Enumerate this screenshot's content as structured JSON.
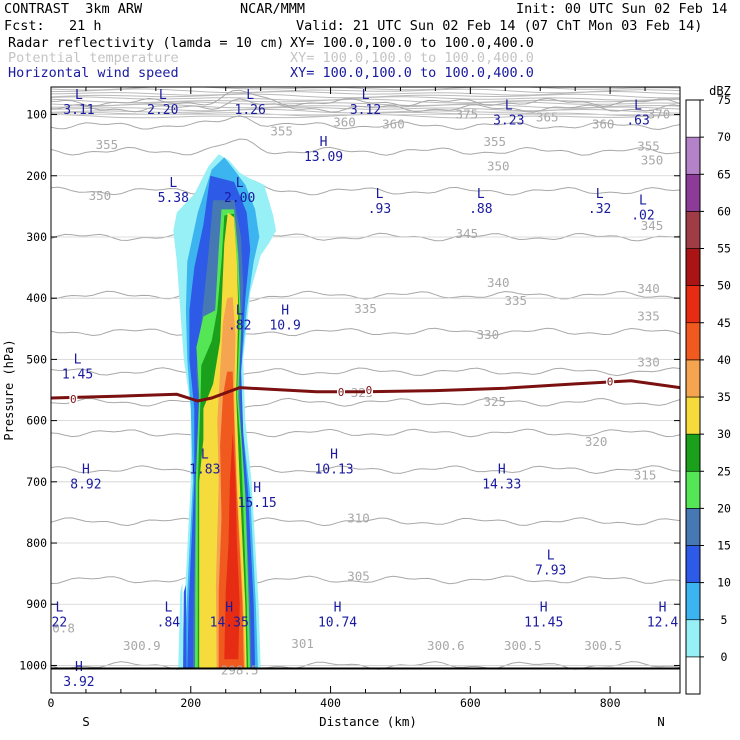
{
  "header": {
    "model": "CONTRAST  3km ARW",
    "org": "NCAR/MMM",
    "init": "Init: 00 UTC Sun 02 Feb 14",
    "fcst": "Fcst:   21 h",
    "valid": "Valid: 21 UTC Sun 02 Feb 14 (07 ChT Mon 03 Feb 14)",
    "fields": [
      {
        "label": "Radar reflectivity (lamda = 10 cm)",
        "xy": "XY= 100.0,100.0 to 100.0,400.0",
        "color": "#000000"
      },
      {
        "label": "Potential temperature",
        "xy": "XY= 100.0,100.0 to 100.0,400.0",
        "color": "#c4c4c4"
      },
      {
        "label": "Horizontal wind speed",
        "xy": "XY= 100.0,100.0 to 100.0,400.0",
        "color": "#1a1aa0"
      }
    ]
  },
  "chart_data": {
    "type": "cross-section",
    "xlabel": "Distance (km)",
    "ylabel": "Pressure (hPa)",
    "xlim": [
      0,
      900
    ],
    "ylim": [
      1045,
      55
    ],
    "x_ticks": [
      0,
      200,
      400,
      600,
      800
    ],
    "y_ticks": [
      100,
      200,
      300,
      400,
      500,
      600,
      700,
      800,
      900,
      1000
    ],
    "x_end_labels": {
      "left": "S",
      "right": "N"
    },
    "colorbar": {
      "unit": "dBZ",
      "levels": [
        0,
        5,
        10,
        15,
        20,
        25,
        30,
        35,
        40,
        45,
        50,
        55,
        60,
        65,
        70,
        75
      ],
      "colors": [
        "#ffffff",
        "#96f0f5",
        "#3cb4f0",
        "#2d5ae6",
        "#4678b4",
        "#55e655",
        "#1aa01a",
        "#f5dc3c",
        "#f5a550",
        "#f05a1e",
        "#e62d14",
        "#aa1414",
        "#a03c46",
        "#8c3c96",
        "#b482c8",
        "#ffffff"
      ]
    },
    "theta_contours": [
      {
        "value": 300,
        "p": 1000
      },
      {
        "value": 305,
        "p": 860
      },
      {
        "value": 310,
        "p": 765
      },
      {
        "value": 315,
        "p": 680
      },
      {
        "value": 320,
        "p": 620
      },
      {
        "value": 325,
        "p": 570
      },
      {
        "value": 330,
        "p": 520
      },
      {
        "value": 335,
        "p": 455
      },
      {
        "value": 340,
        "p": 395
      },
      {
        "value": 345,
        "p": 300
      },
      {
        "value": 350,
        "p": 225
      },
      {
        "value": 355,
        "p": 160
      },
      {
        "value": 360,
        "p": 118
      },
      {
        "value": 370,
        "p": 90
      },
      {
        "value": 375,
        "p": 80
      }
    ],
    "theta_labels": [
      {
        "text": "355",
        "x": 330,
        "p": 128
      },
      {
        "text": "360",
        "x": 420,
        "p": 113
      },
      {
        "text": "360",
        "x": 490,
        "p": 116
      },
      {
        "text": "375",
        "x": 595,
        "p": 100
      },
      {
        "text": "365",
        "x": 710,
        "p": 105
      },
      {
        "text": "360",
        "x": 790,
        "p": 116
      },
      {
        "text": "370",
        "x": 870,
        "p": 100
      },
      {
        "text": "355",
        "x": 80,
        "p": 150
      },
      {
        "text": "355",
        "x": 635,
        "p": 145
      },
      {
        "text": "355",
        "x": 855,
        "p": 152
      },
      {
        "text": "350",
        "x": 70,
        "p": 233
      },
      {
        "text": "350",
        "x": 640,
        "p": 185
      },
      {
        "text": "350",
        "x": 860,
        "p": 175
      },
      {
        "text": "345",
        "x": 595,
        "p": 295
      },
      {
        "text": "345",
        "x": 860,
        "p": 282
      },
      {
        "text": "340",
        "x": 640,
        "p": 375
      },
      {
        "text": "340",
        "x": 855,
        "p": 385
      },
      {
        "text": "335",
        "x": 450,
        "p": 418
      },
      {
        "text": "335",
        "x": 665,
        "p": 405
      },
      {
        "text": "335",
        "x": 855,
        "p": 430
      },
      {
        "text": "330",
        "x": 625,
        "p": 460
      },
      {
        "text": "330",
        "x": 855,
        "p": 505
      },
      {
        "text": "325",
        "x": 445,
        "p": 555
      },
      {
        "text": "325",
        "x": 635,
        "p": 570
      },
      {
        "text": "320",
        "x": 780,
        "p": 635
      },
      {
        "text": "315",
        "x": 850,
        "p": 690
      },
      {
        "text": "310",
        "x": 440,
        "p": 760
      },
      {
        "text": "305",
        "x": 440,
        "p": 855
      },
      {
        "text": "300.9",
        "x": 130,
        "p": 968
      },
      {
        "text": "301",
        "x": 360,
        "p": 965
      },
      {
        "text": "300.6",
        "x": 565,
        "p": 968
      },
      {
        "text": "300.5",
        "x": 675,
        "p": 968
      },
      {
        "text": "300.5",
        "x": 790,
        "p": 968
      },
      {
        "text": "0.8",
        "x": 18,
        "p": 940
      },
      {
        "text": "298.5",
        "x": 270,
        "p": 1008
      }
    ],
    "freezing_level": {
      "label": "0",
      "points": [
        [
          0,
          563
        ],
        [
          100,
          560
        ],
        [
          180,
          557
        ],
        [
          210,
          568
        ],
        [
          230,
          563
        ],
        [
          270,
          546
        ],
        [
          300,
          548
        ],
        [
          380,
          553
        ],
        [
          450,
          553
        ],
        [
          550,
          551
        ],
        [
          650,
          547
        ],
        [
          750,
          540
        ],
        [
          830,
          535
        ],
        [
          900,
          546
        ]
      ],
      "labels": [
        {
          "x": 32,
          "p": 565
        },
        {
          "x": 415,
          "p": 553
        },
        {
          "x": 455,
          "p": 550
        },
        {
          "x": 800,
          "p": 536
        }
      ]
    },
    "reflectivity_regions": [
      {
        "color": "#96f0f5",
        "points": [
          [
            185,
            1005
          ],
          [
            190,
            920
          ],
          [
            200,
            700
          ],
          [
            200,
            580
          ],
          [
            190,
            500
          ],
          [
            185,
            420
          ],
          [
            180,
            340
          ],
          [
            175,
            290
          ],
          [
            180,
            260
          ],
          [
            205,
            230
          ],
          [
            225,
            185
          ],
          [
            240,
            165
          ],
          [
            255,
            175
          ],
          [
            270,
            195
          ],
          [
            285,
            205
          ],
          [
            305,
            215
          ],
          [
            318,
            265
          ],
          [
            322,
            290
          ],
          [
            312,
            310
          ],
          [
            300,
            330
          ],
          [
            285,
            390
          ],
          [
            275,
            500
          ],
          [
            278,
            600
          ],
          [
            287,
            700
          ],
          [
            297,
            900
          ],
          [
            300,
            1005
          ]
        ]
      },
      {
        "color": "#3cb4f0",
        "points": [
          [
            190,
            1005
          ],
          [
            195,
            880
          ],
          [
            203,
            700
          ],
          [
            200,
            580
          ],
          [
            195,
            500
          ],
          [
            193,
            420
          ],
          [
            195,
            340
          ],
          [
            210,
            260
          ],
          [
            230,
            190
          ],
          [
            248,
            170
          ],
          [
            262,
            190
          ],
          [
            278,
            215
          ],
          [
            292,
            255
          ],
          [
            298,
            300
          ],
          [
            290,
            340
          ],
          [
            280,
            420
          ],
          [
            272,
            520
          ],
          [
            275,
            620
          ],
          [
            285,
            720
          ],
          [
            293,
            900
          ],
          [
            296,
            1005
          ]
        ]
      },
      {
        "color": "#2d5ae6",
        "points": [
          [
            195,
            1005
          ],
          [
            197,
            900
          ],
          [
            205,
            700
          ],
          [
            205,
            580
          ],
          [
            198,
            500
          ],
          [
            198,
            420
          ],
          [
            205,
            350
          ],
          [
            218,
            280
          ],
          [
            228,
            200
          ],
          [
            262,
            210
          ],
          [
            280,
            260
          ],
          [
            285,
            320
          ],
          [
            278,
            400
          ],
          [
            272,
            520
          ],
          [
            275,
            620
          ],
          [
            282,
            720
          ],
          [
            290,
            900
          ],
          [
            292,
            1005
          ]
        ]
      },
      {
        "color": "#4678b4",
        "points": [
          [
            203,
            1005
          ],
          [
            204,
            900
          ],
          [
            208,
            700
          ],
          [
            212,
            580
          ],
          [
            208,
            520
          ],
          [
            215,
            440
          ],
          [
            225,
            330
          ],
          [
            232,
            240
          ],
          [
            262,
            240
          ],
          [
            272,
            300
          ],
          [
            275,
            380
          ],
          [
            270,
            520
          ],
          [
            272,
            620
          ],
          [
            278,
            720
          ],
          [
            285,
            900
          ],
          [
            287,
            1005
          ]
        ]
      },
      {
        "color": "#55e655",
        "points": [
          [
            206,
            1005
          ],
          [
            207,
            700
          ],
          [
            212,
            560
          ],
          [
            208,
            480
          ],
          [
            218,
            430
          ],
          [
            235,
            420
          ],
          [
            240,
            320
          ],
          [
            244,
            255
          ],
          [
            262,
            255
          ],
          [
            268,
            330
          ],
          [
            272,
            450
          ],
          [
            268,
            560
          ],
          [
            272,
            620
          ],
          [
            278,
            720
          ],
          [
            283,
            900
          ],
          [
            285,
            1005
          ]
        ]
      },
      {
        "color": "#1aa01a",
        "points": [
          [
            210,
            1005
          ],
          [
            210,
            700
          ],
          [
            214,
            560
          ],
          [
            215,
            510
          ],
          [
            230,
            470
          ],
          [
            238,
            420
          ],
          [
            244,
            340
          ],
          [
            248,
            265
          ],
          [
            262,
            262
          ],
          [
            266,
            340
          ],
          [
            270,
            430
          ],
          [
            266,
            560
          ],
          [
            272,
            650
          ],
          [
            280,
            900
          ],
          [
            282,
            1005
          ]
        ]
      },
      {
        "color": "#f5dc3c",
        "points": [
          [
            212,
            1005
          ],
          [
            212,
            700
          ],
          [
            218,
            630
          ],
          [
            218,
            580
          ],
          [
            232,
            540
          ],
          [
            242,
            470
          ],
          [
            248,
            310
          ],
          [
            253,
            260
          ],
          [
            262,
            268
          ],
          [
            266,
            340
          ],
          [
            268,
            420
          ],
          [
            265,
            560
          ],
          [
            270,
            700
          ],
          [
            278,
            900
          ],
          [
            280,
            1005
          ]
        ]
      },
      {
        "color": "#f5a550",
        "points": [
          [
            237,
            1005
          ],
          [
            236,
            870
          ],
          [
            240,
            700
          ],
          [
            238,
            600
          ],
          [
            242,
            520
          ],
          [
            246,
            440
          ],
          [
            252,
            400
          ],
          [
            260,
            398
          ],
          [
            264,
            460
          ],
          [
            262,
            560
          ],
          [
            266,
            700
          ],
          [
            275,
            900
          ],
          [
            278,
            1005
          ]
        ]
      },
      {
        "color": "#f05a1e",
        "points": [
          [
            240,
            1005
          ],
          [
            240,
            880
          ],
          [
            244,
            760
          ],
          [
            242,
            640
          ],
          [
            246,
            560
          ],
          [
            252,
            520
          ],
          [
            260,
            520
          ],
          [
            262,
            600
          ],
          [
            266,
            720
          ],
          [
            274,
            900
          ],
          [
            276,
            1005
          ]
        ]
      },
      {
        "color": "#e62d14",
        "points": [
          [
            248,
            990
          ],
          [
            250,
            880
          ],
          [
            254,
            800
          ],
          [
            256,
            700
          ],
          [
            260,
            620
          ],
          [
            264,
            700
          ],
          [
            266,
            800
          ],
          [
            270,
            900
          ],
          [
            268,
            990
          ]
        ]
      },
      {
        "color": "#96f0f5",
        "points": [
          [
            182,
            1005
          ],
          [
            185,
            880
          ],
          [
            188,
            865
          ],
          [
            189,
            1005
          ]
        ]
      },
      {
        "color": "#2d5ae6",
        "points": [
          [
            189,
            1005
          ],
          [
            190,
            880
          ],
          [
            193,
            868
          ],
          [
            194,
            1005
          ]
        ]
      }
    ],
    "wind_extrema": [
      {
        "kind": "L",
        "value": "3.11",
        "x": 40,
        "p": 78
      },
      {
        "kind": "L",
        "value": "2.20",
        "x": 160,
        "p": 78
      },
      {
        "kind": "L",
        "value": "1.26",
        "x": 285,
        "p": 78
      },
      {
        "kind": "L",
        "value": "3.12",
        "x": 450,
        "p": 78
      },
      {
        "kind": "L",
        "value": "3.23",
        "x": 655,
        "p": 95
      },
      {
        "kind": "L",
        "value": ".63",
        "x": 840,
        "p": 95
      },
      {
        "kind": "H",
        "value": "13.09",
        "x": 390,
        "p": 155
      },
      {
        "kind": "L",
        "value": "5.38",
        "x": 175,
        "p": 222
      },
      {
        "kind": "L",
        "value": "2.00",
        "x": 270,
        "p": 222
      },
      {
        "kind": "L",
        "value": ".93",
        "x": 470,
        "p": 240
      },
      {
        "kind": "L",
        "value": ".88",
        "x": 615,
        "p": 240
      },
      {
        "kind": "L",
        "value": ".32",
        "x": 785,
        "p": 240
      },
      {
        "kind": "L",
        "value": ".02",
        "x": 847,
        "p": 250
      },
      {
        "kind": "L",
        "value": ".82",
        "x": 270,
        "p": 430
      },
      {
        "kind": "H",
        "value": "10.9",
        "x": 335,
        "p": 430
      },
      {
        "kind": "L",
        "value": "1.45",
        "x": 38,
        "p": 510
      },
      {
        "kind": "L",
        "value": "1.83",
        "x": 220,
        "p": 665
      },
      {
        "kind": "H",
        "value": "10.13",
        "x": 405,
        "p": 665
      },
      {
        "kind": "H",
        "value": "8.92",
        "x": 50,
        "p": 690
      },
      {
        "kind": "H",
        "value": "14.33",
        "x": 645,
        "p": 690
      },
      {
        "kind": "H",
        "value": "15.15",
        "x": 295,
        "p": 720
      },
      {
        "kind": "L",
        "value": "7.93",
        "x": 715,
        "p": 830
      },
      {
        "kind": "L",
        "value": "22",
        "x": 12,
        "p": 915
      },
      {
        "kind": "L",
        "value": ".84",
        "x": 168,
        "p": 915
      },
      {
        "kind": "H",
        "value": "14.35",
        "x": 255,
        "p": 915
      },
      {
        "kind": "H",
        "value": "10.74",
        "x": 410,
        "p": 915
      },
      {
        "kind": "H",
        "value": "11.45",
        "x": 705,
        "p": 915
      },
      {
        "kind": "H",
        "value": "12.4",
        "x": 875,
        "p": 915
      },
      {
        "kind": "H",
        "value": "3.92",
        "x": 40,
        "p": 1012
      }
    ],
    "surface_pressure": 1005,
    "grid": true
  }
}
